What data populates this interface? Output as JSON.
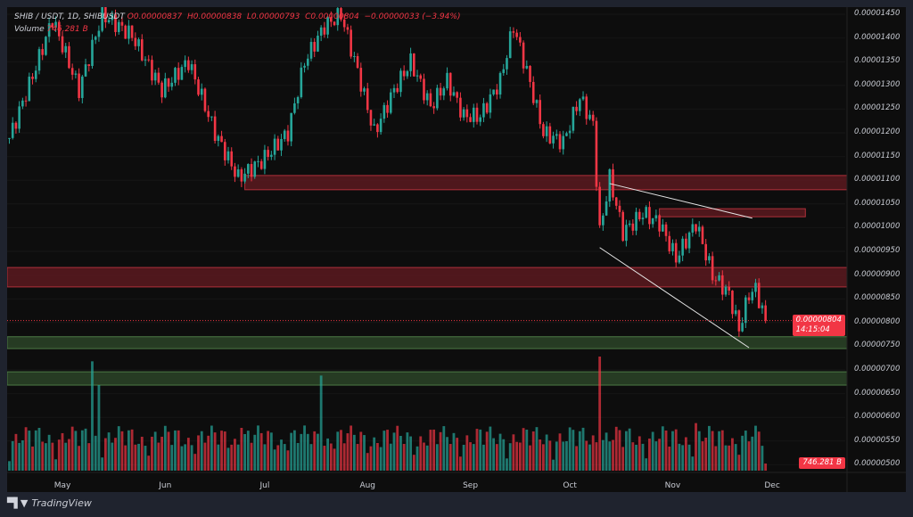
{
  "legend": {
    "symbol": "SHIB / USDT, 1D, SHIBUSDT",
    "open_label": "O",
    "open": "0.00000837",
    "high_label": "H",
    "high": "0.00000838",
    "low_label": "L",
    "low": "0.00000793",
    "close_label": "C",
    "close": "0.00000804",
    "change": "−0.00000033 (−3.94%)",
    "volume_label": "Volume",
    "volume": "746.281 B"
  },
  "price_tag": {
    "price": "0.00000804",
    "countdown": "14:15:04"
  },
  "volume_tag": "746.281 B",
  "branding": {
    "name": "TradingView",
    "mark": "TV"
  },
  "colors": {
    "up": "#26a69a",
    "down": "#f23645",
    "zone_red": "#7a1e26",
    "zone_green": "#2f4a2c",
    "background": "#0d0d0d"
  },
  "chart_data": {
    "type": "candlestick",
    "price_axis": {
      "ticks": [
        "0.00001450",
        "0.00001400",
        "0.00001350",
        "0.00001300",
        "0.00001250",
        "0.00001200",
        "0.00001150",
        "0.00001100",
        "0.00001050",
        "0.00001000",
        "0.00000950",
        "0.00000900",
        "0.00000850",
        "0.00000800",
        "0.00000750",
        "0.00000700",
        "0.00000650",
        "0.00000600",
        "0.00000550",
        "0.00000500"
      ],
      "range": [
        5e-06,
        1.45e-05
      ]
    },
    "time_axis": {
      "ticks": [
        {
          "label": "May",
          "date": "2024-05-01"
        },
        {
          "label": "Jun",
          "date": "2024-06-01"
        },
        {
          "label": "Jul",
          "date": "2024-07-01"
        },
        {
          "label": "Aug",
          "date": "2024-08-01"
        },
        {
          "label": "Sep",
          "date": "2024-09-01"
        },
        {
          "label": "Oct",
          "date": "2024-10-01"
        },
        {
          "label": "Nov",
          "date": "2024-11-01"
        },
        {
          "label": "Dec",
          "date": "2024-12-01"
        }
      ]
    },
    "close_path": [
      [
        "2024-04-15",
        1.189e-05
      ],
      [
        "2024-04-23",
        1.339e-05
      ],
      [
        "2024-04-28",
        1.44e-05
      ],
      [
        "2024-05-06",
        1.29e-05
      ],
      [
        "2024-05-13",
        1.45e-05
      ],
      [
        "2024-05-22",
        1.405e-05
      ],
      [
        "2024-05-31",
        1.29e-05
      ],
      [
        "2024-06-08",
        1.35e-05
      ],
      [
        "2024-06-16",
        1.2e-05
      ],
      [
        "2024-06-23",
        1.105e-05
      ],
      [
        "2024-06-30",
        1.14e-05
      ],
      [
        "2024-07-08",
        1.2e-05
      ],
      [
        "2024-07-13",
        1.35e-05
      ],
      [
        "2024-07-19",
        1.425e-05
      ],
      [
        "2024-07-24",
        1.45e-05
      ],
      [
        "2024-07-29",
        1.33e-05
      ],
      [
        "2024-08-03",
        1.2e-05
      ],
      [
        "2024-08-09",
        1.29e-05
      ],
      [
        "2024-08-14",
        1.35e-05
      ],
      [
        "2024-08-20",
        1.255e-05
      ],
      [
        "2024-08-25",
        1.31e-05
      ],
      [
        "2024-08-30",
        1.235e-05
      ],
      [
        "2024-09-04",
        1.235e-05
      ],
      [
        "2024-09-10",
        1.31e-05
      ],
      [
        "2024-09-14",
        1.425e-05
      ],
      [
        "2024-09-18",
        1.33e-05
      ],
      [
        "2024-09-23",
        1.2e-05
      ],
      [
        "2024-09-29",
        1.18e-05
      ],
      [
        "2024-10-04",
        1.275e-05
      ],
      [
        "2024-10-08",
        1.217e-05
      ],
      [
        "2024-10-10",
        9.9e-06
      ],
      [
        "2024-10-13",
        1.105e-05
      ],
      [
        "2024-10-17",
        9.9e-06
      ],
      [
        "2024-10-23",
        1.03e-05
      ],
      [
        "2024-10-28",
        1.01e-05
      ],
      [
        "2024-11-02",
        9.35e-06
      ],
      [
        "2024-11-08",
        1.01e-05
      ],
      [
        "2024-11-13",
        9e-06
      ],
      [
        "2024-11-18",
        8.6e-06
      ],
      [
        "2024-11-21",
        7.85e-06
      ],
      [
        "2024-11-24",
        8.6e-06
      ],
      [
        "2024-11-26",
        8.7e-06
      ],
      [
        "2024-11-29",
        8.04e-06
      ]
    ],
    "volume_spikes_B": [
      [
        "2024-05-10",
        11500
      ],
      [
        "2024-05-12",
        9000
      ],
      [
        "2024-07-18",
        10000
      ],
      [
        "2024-10-10",
        12000
      ],
      [
        "2024-06-24",
        4500
      ],
      [
        "2024-11-08",
        5000
      ]
    ],
    "volume_base_B": 2500,
    "last_volume_B": 746.281,
    "zones": [
      {
        "kind": "resistance",
        "color": "red",
        "from": "2024-06-25",
        "to": "end",
        "top": 1.11e-05,
        "bottom": 1.08e-05
      },
      {
        "kind": "resistance",
        "color": "red",
        "from": "start",
        "to": "end",
        "top": 9.16e-06,
        "bottom": 8.75e-06
      },
      {
        "kind": "resistance",
        "color": "red",
        "from": "2024-10-28",
        "to": "2024-12-11",
        "top": 1.04e-05,
        "bottom": 1.023e-05
      },
      {
        "kind": "support",
        "color": "green",
        "from": "start",
        "to": "end",
        "top": 7.7e-06,
        "bottom": 7.45e-06
      },
      {
        "kind": "support",
        "color": "green",
        "from": "start",
        "to": "end",
        "top": 6.96e-06,
        "bottom": 6.68e-06
      }
    ],
    "trendlines": [
      {
        "name": "wedge-upper",
        "from": [
          "2024-10-13",
          1.093e-05
        ],
        "to": [
          "2024-11-25",
          1.02e-05
        ]
      },
      {
        "name": "wedge-lower",
        "from": [
          "2024-10-10",
          9.58e-06
        ],
        "to": [
          "2024-11-24",
          7.47e-06
        ]
      }
    ],
    "current_price": 8.04e-06
  }
}
